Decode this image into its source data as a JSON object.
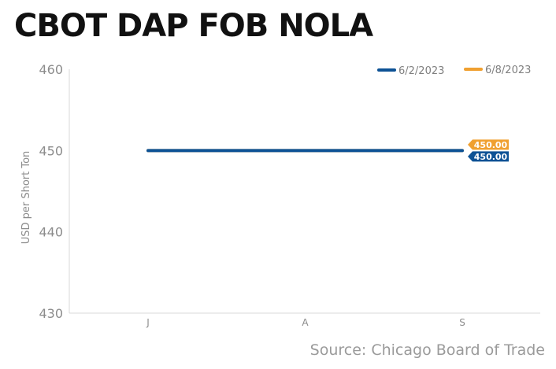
{
  "header": {
    "title": "CBOT DAP FOB NOLA"
  },
  "footer": {
    "source": "Source: Chicago Board of Trade"
  },
  "chart_data": {
    "type": "line",
    "title": "CBOT DAP FOB NOLA",
    "xlabel": "",
    "ylabel": "USD per Short Ton",
    "categories": [
      "J",
      "A",
      "S"
    ],
    "ylim": [
      430,
      460
    ],
    "yticks": [
      430,
      440,
      450,
      460
    ],
    "grid": false,
    "legend_position": "top-right",
    "series": [
      {
        "name": "6/8/2023",
        "color": "#f0a030",
        "values": [
          450,
          450,
          450
        ],
        "end_label": "450.00"
      },
      {
        "name": "6/2/2023",
        "color": "#0d5295",
        "values": [
          450,
          450,
          450
        ],
        "end_label": "450.00"
      }
    ],
    "legend_order": [
      1,
      0
    ]
  }
}
